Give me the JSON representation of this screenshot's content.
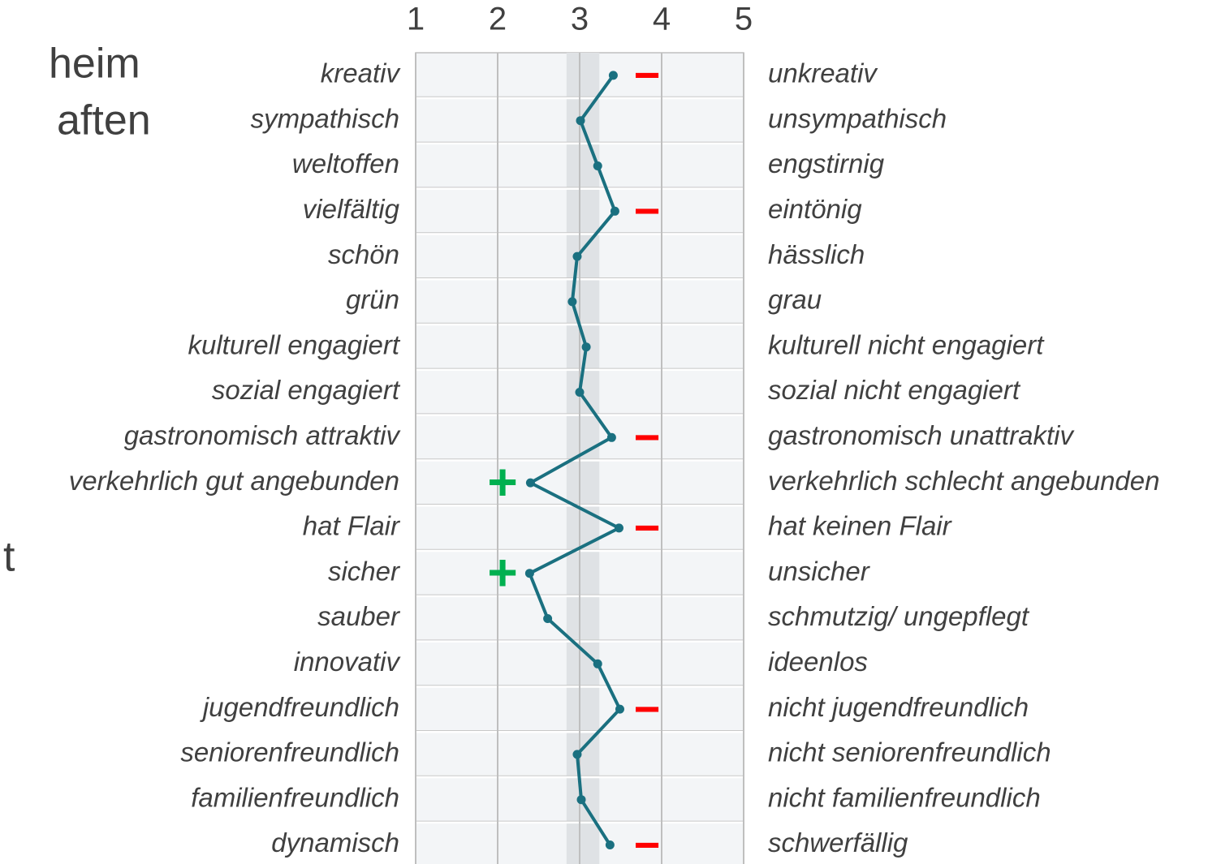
{
  "side_text": [
    "heim",
    "aften",
    "t"
  ],
  "chart_data": {
    "type": "line",
    "orientation": "horizontal",
    "categories": [
      "kreativ",
      "sympathisch",
      "weltoffen",
      "vielfältig",
      "schön",
      "grün",
      "kulturell engagiert",
      "sozial engagiert",
      "gastronomisch attraktiv",
      "verkehrlich gut angebunden",
      "hat Flair",
      "sicher",
      "sauber",
      "innovativ",
      "jugendfreundlich",
      "seniorenfreundlich",
      "familienfreundlich",
      "dynamisch"
    ],
    "right_labels": [
      "unkreativ",
      "unsympathisch",
      "engstirnig",
      "eintönig",
      "hässlich",
      "grau",
      "kulturell nicht engagiert",
      "sozial nicht engagiert",
      "gastronomisch unattraktiv",
      "verkehrlich schlecht angebunden",
      "hat keinen Flair",
      "unsicher",
      "schmutzig/ ungepflegt",
      "ideenlos",
      "nicht jugendfreundlich",
      "nicht seniorenfreundlich",
      "nicht familienfreundlich",
      "schwerfällig"
    ],
    "series": [
      {
        "color": "#1a7080",
        "values": [
          3.41,
          3.01,
          3.22,
          3.43,
          2.97,
          2.91,
          3.08,
          3.0,
          3.39,
          2.4,
          3.48,
          2.39,
          2.61,
          3.22,
          3.49,
          2.97,
          3.02,
          3.37
        ]
      }
    ],
    "markers": [
      "−",
      null,
      null,
      "−",
      null,
      null,
      null,
      null,
      "−",
      "+",
      "−",
      "+",
      null,
      null,
      "−",
      null,
      null,
      "−"
    ],
    "marker_colors": {
      "+": "#00b050",
      "−": "#ff0000"
    },
    "reference_band": [
      2.84,
      3.24
    ],
    "xlim": [
      1,
      5
    ],
    "xticks": [
      1,
      2,
      3,
      4,
      5
    ],
    "grid": true
  }
}
